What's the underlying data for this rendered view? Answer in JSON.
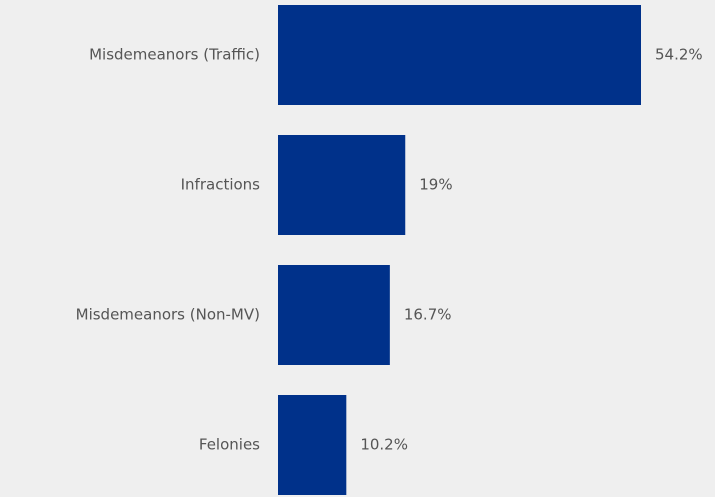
{
  "chart_data": {
    "type": "bar",
    "orientation": "horizontal",
    "categories": [
      "Misdemeanors (Traffic)",
      "Infractions",
      "Misdemeanors (Non-MV)",
      "Felonies"
    ],
    "values": [
      54.2,
      19,
      16.7,
      10.2
    ],
    "value_labels": [
      "54.2%",
      "19%",
      "16.7%",
      "10.2%"
    ],
    "color": "#00318a"
  }
}
